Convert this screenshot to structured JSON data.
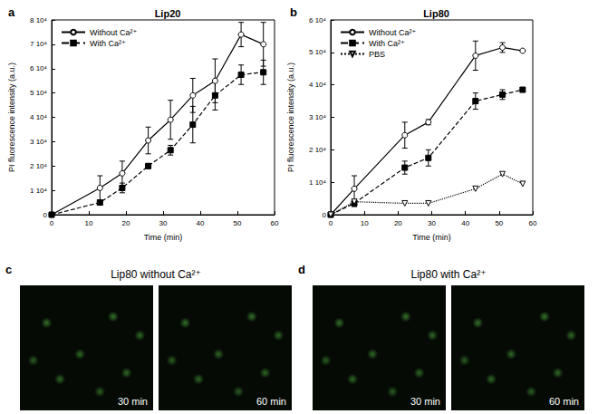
{
  "chart_data": [
    {
      "panel": "a",
      "type": "line",
      "title": "Lip20",
      "x_label": "Time (min)",
      "y_label": "PI fluorescence intensity (a.u.)",
      "xlim": [
        0,
        60
      ],
      "xticks": [
        0,
        10,
        20,
        30,
        40,
        50,
        60
      ],
      "ylim": [
        0,
        80000
      ],
      "yticks": [
        0,
        {
          "value": 10000,
          "label": "1 10⁴"
        },
        {
          "value": 20000,
          "label": "2 10⁴"
        },
        {
          "value": 30000,
          "label": "3 10⁴"
        },
        {
          "value": 40000,
          "label": "4 10⁴"
        },
        {
          "value": 50000,
          "label": "5 10⁴"
        },
        {
          "value": 60000,
          "label": "6 10⁴"
        },
        {
          "value": 70000,
          "label": "7 10⁴"
        },
        {
          "value": 80000,
          "label": "8 10⁴"
        }
      ],
      "legend": "top-left",
      "series": [
        {
          "name": "Without Ca²⁺",
          "color": "#000000",
          "marker": "circle-open",
          "line_style": "solid",
          "x": [
            0,
            13,
            19,
            26,
            32,
            38,
            44,
            51,
            57
          ],
          "values": [
            0,
            11000,
            17000,
            30500,
            39000,
            49000,
            55000,
            74000,
            70000
          ],
          "errors": [
            0,
            5000,
            5000,
            5500,
            8000,
            7000,
            9000,
            5000,
            9000
          ]
        },
        {
          "name": "With Ca²⁺",
          "color": "#000000",
          "marker": "square",
          "line_style": "dashed",
          "x": [
            0,
            13,
            19,
            26,
            32,
            38,
            44,
            51,
            57
          ],
          "values": [
            0,
            5000,
            11000,
            20000,
            26500,
            37000,
            49000,
            57500,
            58500
          ],
          "errors": [
            0,
            1000,
            2000,
            1000,
            2000,
            7500,
            6000,
            4000,
            5000
          ]
        }
      ]
    },
    {
      "panel": "b",
      "type": "line",
      "title": "Lip80",
      "x_label": "Time (min)",
      "y_label": "PI fluorescence intensity (a.u.)",
      "xlim": [
        0,
        60
      ],
      "xticks": [
        0,
        10,
        20,
        30,
        40,
        50,
        60
      ],
      "ylim": [
        0,
        60000
      ],
      "yticks": [
        0,
        {
          "value": 10000,
          "label": "1 10⁴"
        },
        {
          "value": 20000,
          "label": "2 10⁴"
        },
        {
          "value": 30000,
          "label": "3 10⁴"
        },
        {
          "value": 40000,
          "label": "4 10⁴"
        },
        {
          "value": 50000,
          "label": "5 10⁴"
        },
        {
          "value": 60000,
          "label": "6 10⁴"
        }
      ],
      "legend": "top-left",
      "series": [
        {
          "name": "Without Ca²⁺",
          "color": "#000000",
          "marker": "circle-open",
          "line_style": "solid",
          "x": [
            0,
            7,
            22,
            29,
            43,
            51,
            57
          ],
          "values": [
            0,
            8000,
            24500,
            28500,
            49000,
            51500,
            50500
          ],
          "errors": [
            0,
            4000,
            4000,
            800,
            4500,
            1500,
            0
          ]
        },
        {
          "name": "With Ca²⁺",
          "color": "#000000",
          "marker": "square",
          "line_style": "dashed",
          "x": [
            0,
            7,
            22,
            29,
            43,
            51,
            57
          ],
          "values": [
            0,
            3500,
            14500,
            17500,
            35000,
            37000,
            38500
          ],
          "errors": [
            0,
            1000,
            2000,
            2500,
            2500,
            1500,
            500
          ]
        },
        {
          "name": "PBS",
          "color": "#000000",
          "marker": "triangle-down-open",
          "line_style": "dotted",
          "x": [
            0,
            7,
            22,
            29,
            43,
            51,
            57
          ],
          "values": [
            0,
            4000,
            3500,
            3500,
            8000,
            12500,
            9500
          ]
        }
      ]
    }
  ],
  "images": [
    {
      "panel": "c",
      "title": "Lip80 without Ca²⁺",
      "frames": [
        "30 min",
        "60 min"
      ]
    },
    {
      "panel": "d",
      "title": "Lip80 with Ca²⁺",
      "frames": [
        "30 min",
        "60 min"
      ]
    }
  ]
}
